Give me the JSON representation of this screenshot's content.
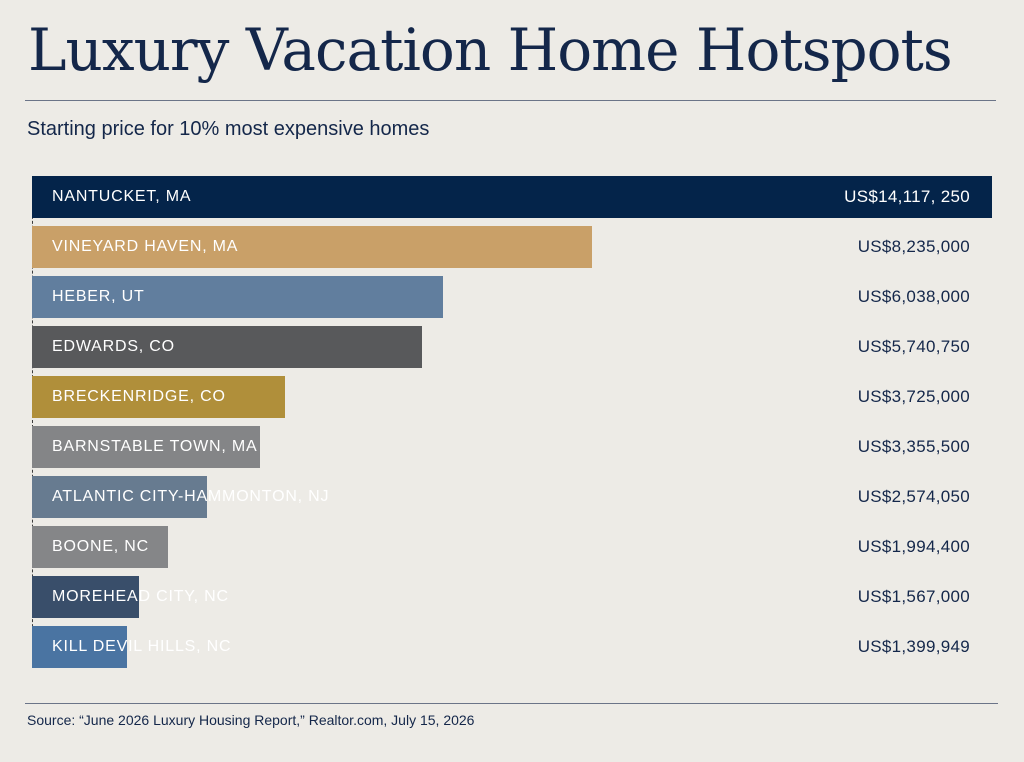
{
  "title": "Luxury Vacation Home Hotspots",
  "subtitle": "Starting price for 10% most expensive homes",
  "source": "Source: “June 2026 Luxury Housing Report,” Realtor.com, July 15, 2026",
  "chart_data": {
    "type": "bar",
    "orientation": "horizontal",
    "title": "Luxury Vacation Home Hotspots",
    "subtitle": "Starting price for 10% most expensive homes",
    "xlabel": "",
    "ylabel": "",
    "xlim": [
      0,
      14117250
    ],
    "grid": false,
    "categories": [
      "NANTUCKET, MA",
      "VINEYARD HAVEN, MA",
      "HEBER, UT",
      "EDWARDS, CO",
      "BRECKENRIDGE, CO",
      "BARNSTABLE TOWN, MA",
      "ATLANTIC CITY-HAMMONTON, NJ",
      "BOONE, NC",
      "MOREHEAD CITY, NC",
      "KILL DEVIL HILLS, NC"
    ],
    "values": [
      14117250,
      8235000,
      6038000,
      5740750,
      3725000,
      3355500,
      2574050,
      1994400,
      1567000,
      1399949
    ],
    "value_labels": [
      "US$14,117, 250",
      "US$8,235,000",
      "US$6,038,000",
      "US$5,740,750",
      "US$3,725,000",
      "US$3,355,500",
      "US$2,574,050",
      "US$1,994,400",
      "US$1,567,000",
      "US$1,399,949"
    ],
    "colors": [
      "#04244a",
      "#c9a068",
      "#617e9e",
      "#58595b",
      "#b08f3a",
      "#848587",
      "#677b90",
      "#858688",
      "#394e6a",
      "#4a74a2"
    ]
  }
}
